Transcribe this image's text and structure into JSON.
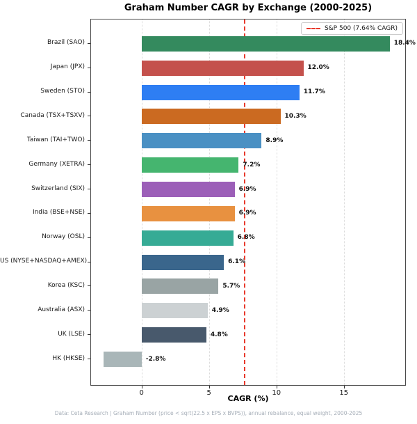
{
  "title": "Graham Number CAGR by Exchange (2000-2025)",
  "xlabel": "CAGR (%)",
  "legend": {
    "label": "S&P 500 (7.64% CAGR)"
  },
  "footer": "Data: Ceta Research | Graham Number (price < sqrt(22.5 x EPS x BVPS)), annual rebalance, equal weight, 2000-2025",
  "colors": {
    "background": "#ffffff",
    "spine": "#4a4a4a",
    "grid": "#d9d9d9",
    "reference_line": "#e8392c",
    "value_label": "#111111",
    "footer_text": "#a6aeb8"
  },
  "chart_data": {
    "type": "bar",
    "orientation": "horizontal",
    "title": "Graham Number CAGR by Exchange (2000-2025)",
    "xlabel": "CAGR (%)",
    "ylabel": "",
    "grid": "x-dotted",
    "xlim": [
      -3.75,
      19.55
    ],
    "x_ticks": [
      0,
      5,
      10,
      15
    ],
    "categories": [
      "Brazil (SAO)",
      "Japan (JPX)",
      "Sweden (STO)",
      "Canada (TSX+TSXV)",
      "Taiwan (TAI+TWO)",
      "Germany (XETRA)",
      "Switzerland (SIX)",
      "India (BSE+NSE)",
      "Norway (OSL)",
      "US (NYSE+NASDAQ+AMEX)",
      "Korea (KSC)",
      "Australia (ASX)",
      "UK (LSE)",
      "HK (HKSE)"
    ],
    "values": [
      18.4,
      12.0,
      11.7,
      10.3,
      8.9,
      7.2,
      6.9,
      6.9,
      6.8,
      6.1,
      5.7,
      4.9,
      4.8,
      -2.8
    ],
    "value_labels": [
      "18.4%",
      "12.0%",
      "11.7%",
      "10.3%",
      "8.9%",
      "7.2%",
      "6.9%",
      "6.9%",
      "6.8%",
      "6.1%",
      "5.7%",
      "4.9%",
      "4.8%",
      "-2.8%"
    ],
    "bar_colors": [
      "#348a5e",
      "#c4514c",
      "#2e7ef3",
      "#cb6a21",
      "#4a90c3",
      "#45b56f",
      "#9c5fb8",
      "#e89140",
      "#36ab95",
      "#3a668c",
      "#99a4a4",
      "#ccd1d3",
      "#48596c",
      "#a9b6b8"
    ],
    "reference_line": {
      "value": 7.64,
      "label": "S&P 500 (7.64% CAGR)",
      "color": "#e8392c",
      "style": "dashed"
    },
    "legend_position": "upper right"
  }
}
